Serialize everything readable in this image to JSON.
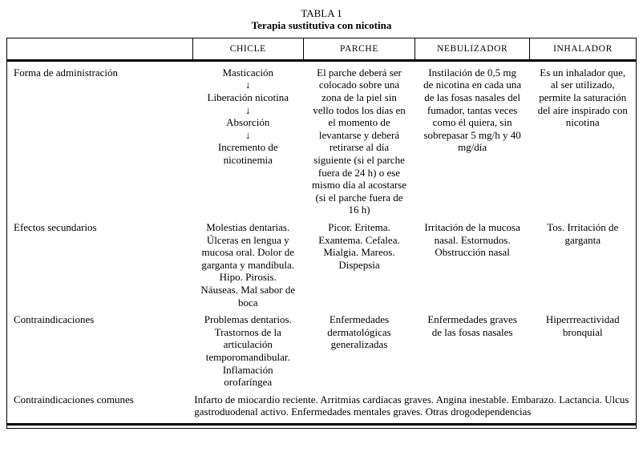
{
  "title": "TABLA 1",
  "subtitle": "Terapia sustitutiva con nicotina",
  "table": {
    "columns": [
      "",
      "CHICLE",
      "PARCHE",
      "NEBULIZADOR",
      "INHALADOR"
    ],
    "rows": [
      {
        "label": "Forma de administración",
        "cells": [
          "Masticación\n↓\nLiberación nicotina\n↓\nAbsorción\n↓\nIncremento de nicotinemia",
          "El parche deberá ser colocado sobre una zona de la piel sin vello todos los días en el momento de levantarse y deberá retirarse al día siguiente (si el parche fuera de 24 h) o ese mismo día al acostarse (si el parche fuera de 16 h)",
          "Instilación de 0,5 mg de nicotina en cada una de las fosas nasales del fumador, tantas veces como él quiera, sin sobrepasar 5 mg/h y 40 mg/día",
          "Es un inhalador que, al ser utilizado, permite la saturación del aire inspirado con nicotina"
        ]
      },
      {
        "label": "Efectos secundarios",
        "cells": [
          "Molestias dentarias. Úlceras en lengua y mucosa oral. Dolor de garganta y mandíbula. Hipo. Pirosis. Náuseas. Mal sabor de boca",
          "Picor. Eritema. Exantema. Cefalea. Mialgia. Mareos. Dispepsia",
          "Irritación de la mucosa nasal. Estornudos. Obstrucción nasal",
          "Tos. Irritación de garganta"
        ]
      },
      {
        "label": "Contraindicaciones",
        "cells": [
          "Problemas dentarios. Trastornos de la articulación temporomandibular. Inflamación orofaríngea",
          "Enfermedades dermatológicas generalizadas",
          "Enfermedades graves de las fosas nasales",
          "Hiperrreactividad bronquial"
        ]
      }
    ],
    "common": {
      "label": "Contraindicaciones comunes",
      "text": "Infarto de miocardio reciente. Arritmias cardíacas graves. Angina inestable. Embarazo. Lactancia. Ulcus gastroduodenal activo. Enfermedades mentales graves. Otras drogodependencias"
    }
  }
}
